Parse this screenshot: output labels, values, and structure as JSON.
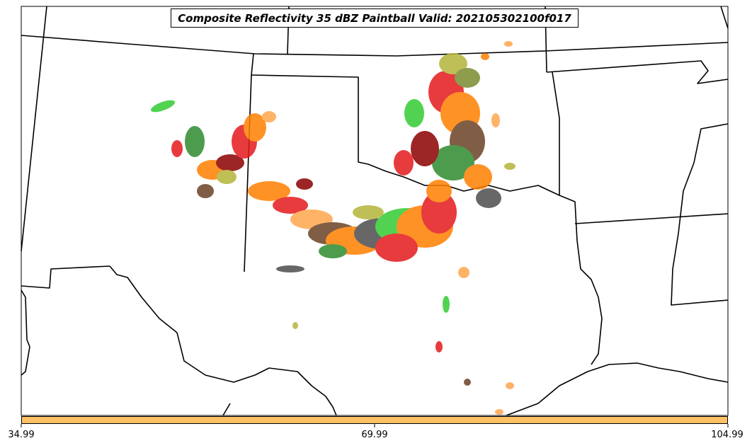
{
  "title": "Composite Reflectivity 35 dBZ Paintball Valid: 202105302100f017",
  "colorbar": {
    "color": "#ffc166",
    "tick_labels": [
      "34.99",
      "69.99",
      "104.99"
    ]
  },
  "colors": {
    "background": "#ffffff",
    "boundaries": "#000000",
    "paintball_members": [
      "#e41a1c",
      "#ff7f00",
      "#ffa64d",
      "#33cc33",
      "#2e8b2e",
      "#8b0000",
      "#6b4226",
      "#4d4d4d",
      "#b5b53a",
      "#7a8b2e"
    ]
  }
}
